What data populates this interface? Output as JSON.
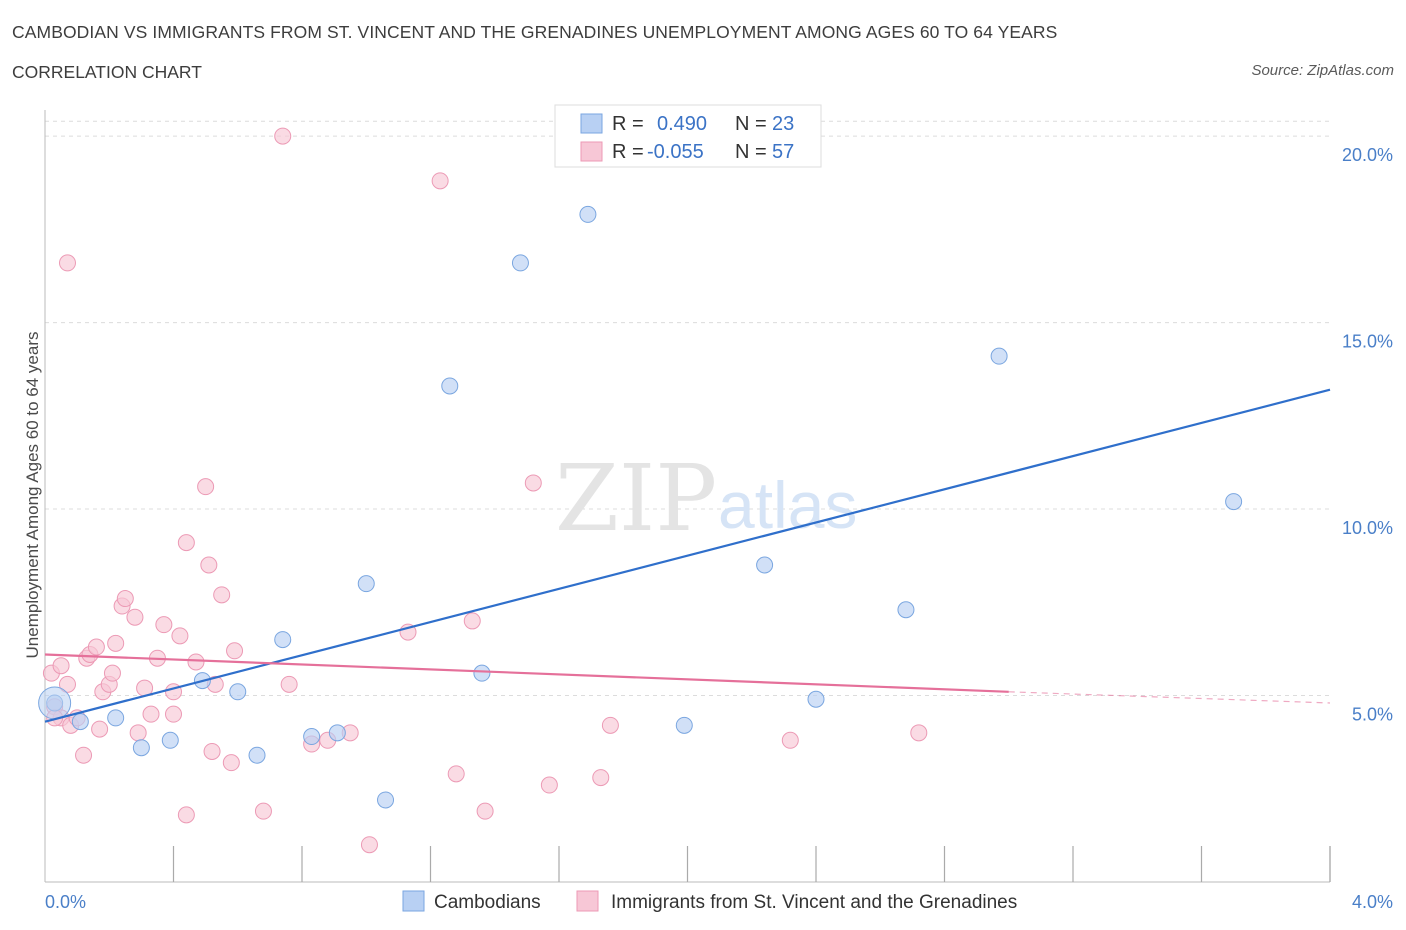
{
  "title": "CAMBODIAN VS IMMIGRANTS FROM ST. VINCENT AND THE GRENADINES UNEMPLOYMENT AMONG AGES 60 TO 64 YEARS",
  "subtitle": "CORRELATION CHART",
  "source": "Source: ZipAtlas.com",
  "watermark": {
    "zip": "ZIP",
    "atlas": "atlas"
  },
  "colors": {
    "blue_fill": "#b8d0f3",
    "blue_stroke": "#7aa6e0",
    "blue_line": "#2f6fcb",
    "pink_fill": "#f7c7d6",
    "pink_stroke": "#ec9ab5",
    "pink_line": "#e5709a",
    "axis_text": "#4a7fc8",
    "grid": "#dcdcdc"
  },
  "legend": {
    "rows": [
      {
        "r_label": "R =",
        "r_value": "0.490",
        "n_label": "N =",
        "n_value": "23"
      },
      {
        "r_label": "R =",
        "r_value": "-0.055",
        "n_label": "N =",
        "n_value": "57"
      }
    ]
  },
  "chart_data": {
    "type": "scatter",
    "title": "CAMBODIAN VS IMMIGRANTS FROM ST. VINCENT AND THE GRENADINES UNEMPLOYMENT AMONG AGES 60 TO 64 YEARS",
    "xlabel": "",
    "ylabel": "Unemployment Among Ages 60 to 64 years",
    "xlim": [
      0,
      4.0
    ],
    "ylim": [
      0,
      20.7
    ],
    "x_tick_labels": [
      "0.0%",
      "4.0%"
    ],
    "y_ticks": [
      5,
      10,
      15,
      20
    ],
    "y_tick_labels": [
      "5.0%",
      "10.0%",
      "15.0%",
      "20.0%"
    ],
    "grid": "horizontal dashed",
    "legend_position": "top-center",
    "series": [
      {
        "name": "Cambodians",
        "color": "#b8d0f3",
        "points": [
          [
            0.03,
            4.8
          ],
          [
            0.11,
            4.3
          ],
          [
            0.22,
            4.4
          ],
          [
            0.3,
            3.6
          ],
          [
            0.39,
            3.8
          ],
          [
            0.49,
            5.4
          ],
          [
            0.6,
            5.1
          ],
          [
            0.66,
            3.4
          ],
          [
            0.74,
            6.5
          ],
          [
            0.83,
            3.9
          ],
          [
            0.91,
            4.0
          ],
          [
            1.0,
            8.0
          ],
          [
            1.06,
            2.2
          ],
          [
            1.26,
            13.3
          ],
          [
            1.36,
            5.6
          ],
          [
            1.48,
            16.6
          ],
          [
            1.69,
            17.9
          ],
          [
            1.99,
            4.2
          ],
          [
            2.24,
            8.5
          ],
          [
            2.4,
            4.9
          ],
          [
            2.68,
            7.3
          ],
          [
            2.97,
            14.1
          ],
          [
            3.7,
            10.2
          ]
        ],
        "trend": {
          "x": [
            0.0,
            4.0
          ],
          "y": [
            4.3,
            13.2
          ]
        }
      },
      {
        "name": "Immigrants from St. Vincent and the Grenadines",
        "color": "#f7c7d6",
        "points": [
          [
            0.02,
            5.6
          ],
          [
            0.03,
            4.7
          ],
          [
            0.05,
            4.4
          ],
          [
            0.05,
            5.8
          ],
          [
            0.07,
            5.3
          ],
          [
            0.08,
            4.2
          ],
          [
            0.1,
            4.4
          ],
          [
            0.12,
            3.4
          ],
          [
            0.13,
            6.0
          ],
          [
            0.14,
            6.1
          ],
          [
            0.16,
            6.3
          ],
          [
            0.17,
            4.1
          ],
          [
            0.18,
            5.1
          ],
          [
            0.2,
            5.3
          ],
          [
            0.21,
            5.6
          ],
          [
            0.22,
            6.4
          ],
          [
            0.24,
            7.4
          ],
          [
            0.25,
            7.6
          ],
          [
            0.28,
            7.1
          ],
          [
            0.29,
            4.0
          ],
          [
            0.31,
            5.2
          ],
          [
            0.33,
            4.5
          ],
          [
            0.35,
            6.0
          ],
          [
            0.37,
            6.9
          ],
          [
            0.4,
            4.5
          ],
          [
            0.4,
            5.1
          ],
          [
            0.42,
            6.6
          ],
          [
            0.44,
            9.1
          ],
          [
            0.44,
            1.8
          ],
          [
            0.47,
            5.9
          ],
          [
            0.5,
            10.6
          ],
          [
            0.51,
            8.5
          ],
          [
            0.52,
            3.5
          ],
          [
            0.53,
            5.3
          ],
          [
            0.55,
            7.7
          ],
          [
            0.58,
            3.2
          ],
          [
            0.59,
            6.2
          ],
          [
            0.68,
            1.9
          ],
          [
            0.74,
            20.0
          ],
          [
            0.76,
            5.3
          ],
          [
            0.83,
            3.7
          ],
          [
            0.88,
            3.8
          ],
          [
            0.95,
            4.0
          ],
          [
            1.01,
            1.0
          ],
          [
            1.13,
            6.7
          ],
          [
            1.23,
            18.8
          ],
          [
            1.28,
            2.9
          ],
          [
            1.33,
            7.0
          ],
          [
            1.37,
            1.9
          ],
          [
            1.52,
            10.7
          ],
          [
            1.57,
            2.6
          ],
          [
            1.73,
            2.8
          ],
          [
            1.76,
            4.2
          ],
          [
            2.32,
            3.8
          ],
          [
            2.72,
            4.0
          ],
          [
            0.07,
            16.6
          ],
          [
            0.03,
            4.4
          ]
        ],
        "trend": {
          "x": [
            0.0,
            3.0
          ],
          "y": [
            6.1,
            5.1
          ]
        },
        "trend_dashed_extension": {
          "x": [
            3.0,
            4.0
          ],
          "y": [
            5.1,
            4.8
          ]
        }
      }
    ]
  },
  "bottom_legend": [
    {
      "label": "Cambodians"
    },
    {
      "label": "Immigrants from St. Vincent and the Grenadines"
    }
  ]
}
